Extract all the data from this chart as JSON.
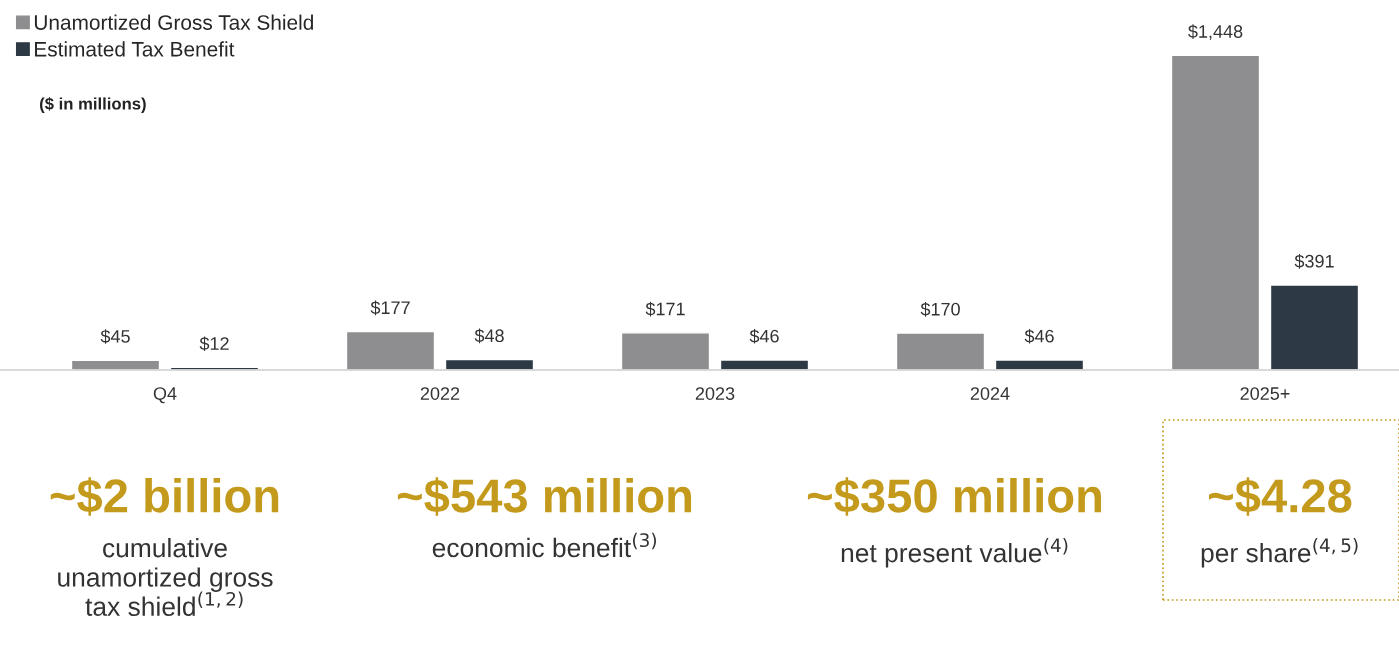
{
  "chart_data": {
    "type": "bar",
    "categories": [
      "Q4",
      "2022",
      "2023",
      "2024",
      "2025+"
    ],
    "series": [
      {
        "name": "Unamortized Gross Tax Shield",
        "color": "#8e8e90",
        "values": [
          45,
          177,
          171,
          170,
          1448
        ],
        "value_labels": [
          "$45",
          "$177",
          "$171",
          "$170",
          "$1,448"
        ]
      },
      {
        "name": "Estimated Tax Benefit",
        "color": "#2d3945",
        "values": [
          12,
          48,
          46,
          46,
          391
        ],
        "value_labels": [
          "$12",
          "$48",
          "$46",
          "$46",
          "$391"
        ]
      }
    ],
    "legend": "top left",
    "grid": false,
    "annotations": [
      "($ in millions)",
      "~$2 billion",
      "cumulative\nunamortized gross\ntax shield$^{(1,2)}$",
      "~$543 million",
      "economic benefit$^{(3)}$",
      "~$350 million",
      "net present value$^{(4)}$",
      "~$4.28",
      "per share$^{(4,5)}$"
    ]
  }
}
